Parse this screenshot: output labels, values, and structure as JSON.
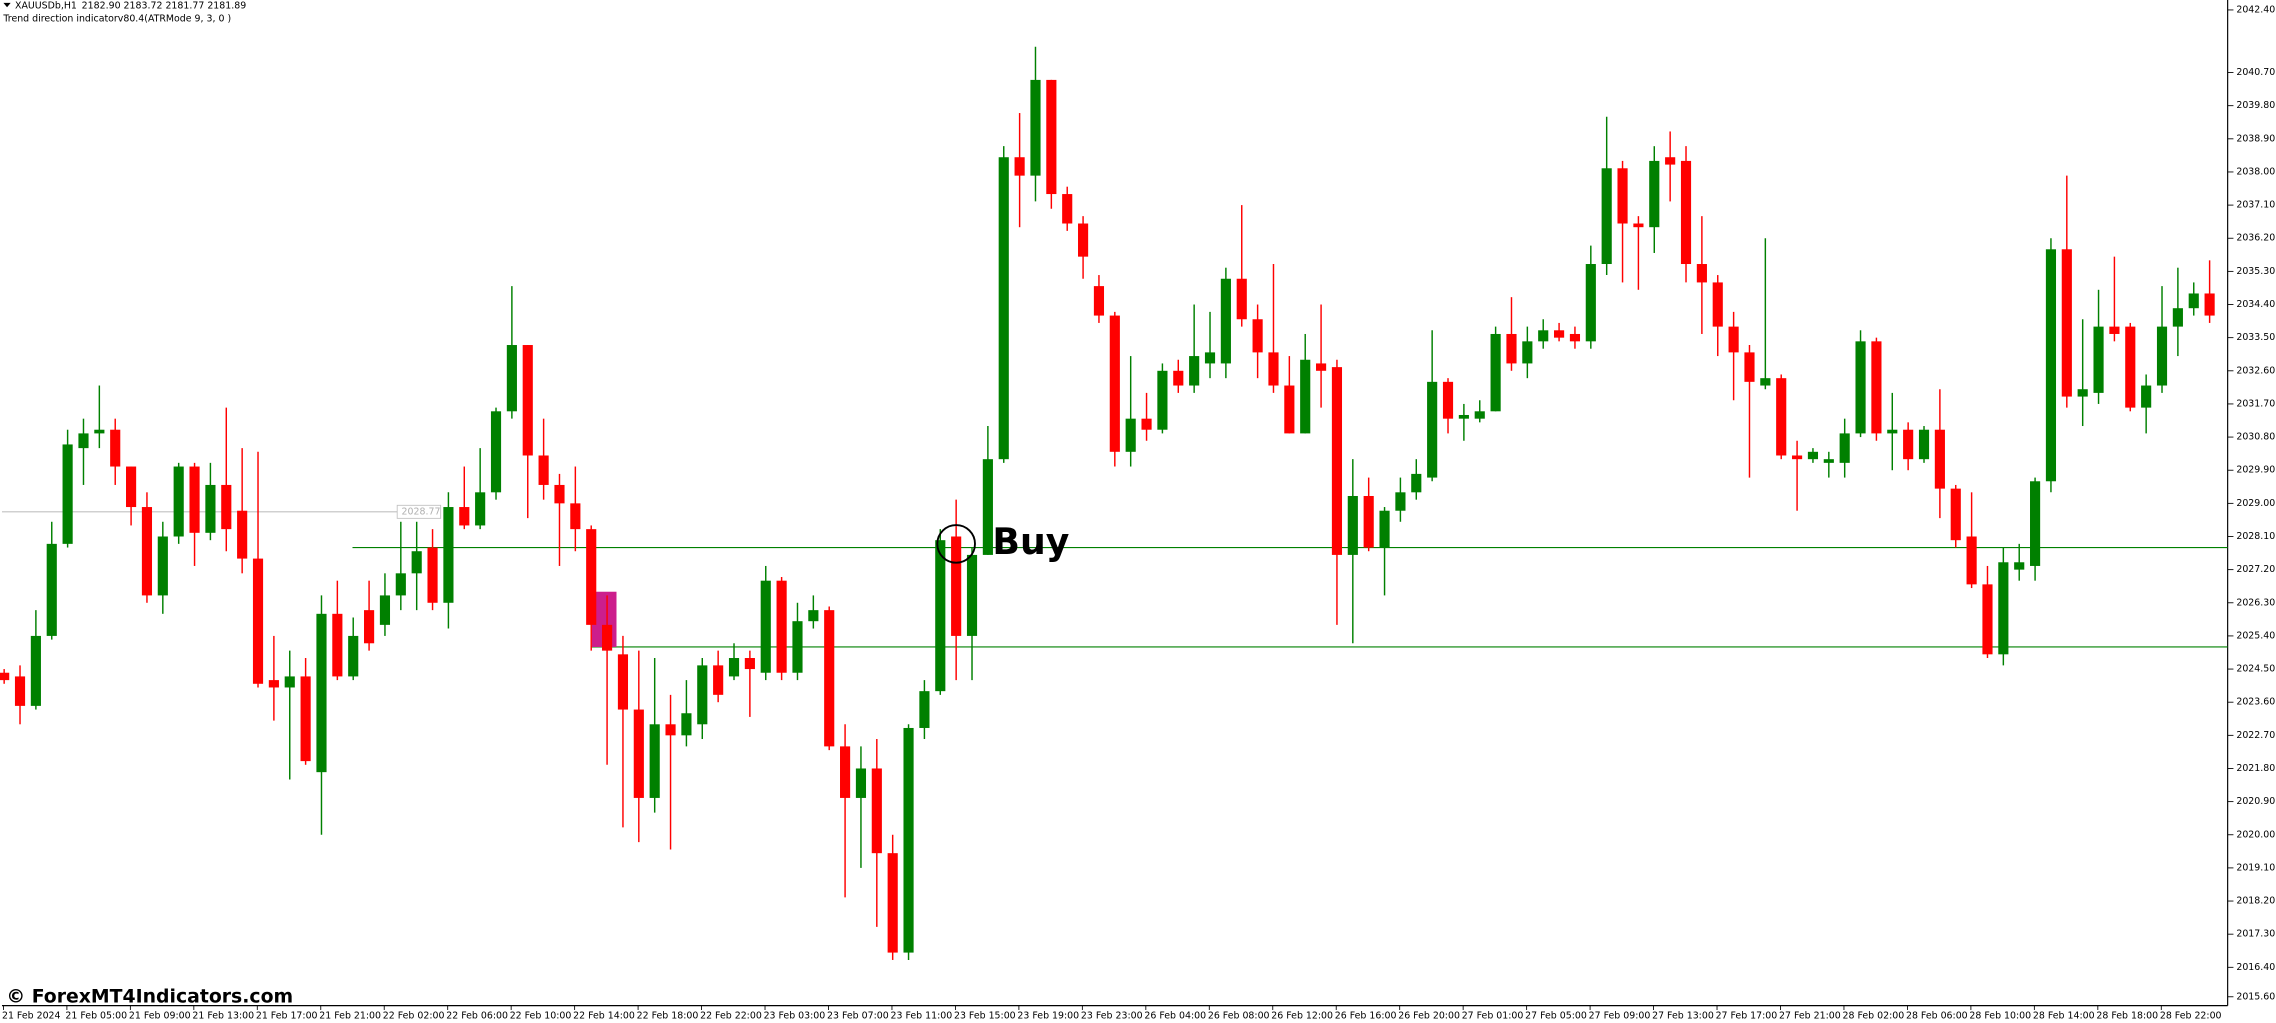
{
  "chart_data": {
    "type": "candlestick",
    "symbol": "XAUUSDb,H1",
    "quote": "2182.90 2183.72 2181.77 2181.89",
    "indicator": "Trend direction indicatorv80.4(ATRMode 9, 3, 0 )",
    "watermark": "© ForexMT4Indicators.com",
    "up_color": "#008000",
    "down_color": "#ff0000",
    "categories": [
      "21 Feb 2024",
      null,
      null,
      null,
      "21 Feb 05:00",
      null,
      null,
      null,
      "21 Feb 09:00",
      null,
      null,
      null,
      "21 Feb 13:00",
      null,
      null,
      null,
      "21 Feb 17:00",
      null,
      null,
      null,
      "21 Feb 21:00",
      null,
      null,
      null,
      "22 Feb 02:00",
      null,
      null,
      null,
      "22 Feb 06:00",
      null,
      null,
      null,
      "22 Feb 10:00",
      null,
      null,
      null,
      "22 Feb 14:00",
      null,
      null,
      null,
      "22 Feb 18:00",
      null,
      null,
      null,
      "22 Feb 22:00",
      null,
      null,
      null,
      "23 Feb 03:00",
      null,
      null,
      null,
      "23 Feb 07:00",
      null,
      null,
      null,
      "23 Feb 11:00",
      null,
      null,
      null,
      "23 Feb 15:00",
      null,
      null,
      null,
      "23 Feb 19:00",
      null,
      null,
      null,
      "23 Feb 23:00",
      null,
      null,
      null,
      "26 Feb 04:00",
      null,
      null,
      null,
      "26 Feb 08:00",
      null,
      null,
      null,
      "26 Feb 12:00",
      null,
      null,
      null,
      "26 Feb 16:00",
      null,
      null,
      null,
      "26 Feb 20:00",
      null,
      null,
      null,
      "27 Feb 01:00",
      null,
      null,
      null,
      "27 Feb 05:00",
      null,
      null,
      null,
      "27 Feb 09:00",
      null,
      null,
      null,
      "27 Feb 13:00",
      null,
      null,
      null,
      "27 Feb 17:00",
      null,
      null,
      null,
      "27 Feb 21:00",
      null,
      null,
      null,
      "28 Feb 02:00",
      null,
      null,
      null,
      "28 Feb 06:00",
      null,
      null,
      null,
      "28 Feb 10:00",
      null,
      null,
      null,
      "28 Feb 14:00",
      null,
      null,
      null,
      "28 Feb 18:00",
      null,
      null,
      null,
      "28 Feb 22:00",
      null,
      null,
      null
    ],
    "ohlc": [
      [
        2024.4,
        2024.5,
        2024.1,
        2024.2
      ],
      [
        2024.3,
        2024.6,
        2023.0,
        2023.5
      ],
      [
        2023.5,
        2026.1,
        2023.4,
        2025.4
      ],
      [
        2025.4,
        2028.5,
        2025.3,
        2027.9
      ],
      [
        2027.9,
        2031.0,
        2027.8,
        2030.6
      ],
      [
        2030.5,
        2031.3,
        2029.5,
        2030.9
      ],
      [
        2030.9,
        2032.2,
        2030.5,
        2031.0
      ],
      [
        2031.0,
        2031.3,
        2029.5,
        2030.0
      ],
      [
        2030.0,
        2030.0,
        2028.4,
        2028.9
      ],
      [
        2028.9,
        2029.3,
        2026.3,
        2026.5
      ],
      [
        2026.5,
        2028.5,
        2026.0,
        2028.1
      ],
      [
        2028.1,
        2030.1,
        2027.9,
        2030.0
      ],
      [
        2030.0,
        2030.1,
        2027.3,
        2028.2
      ],
      [
        2028.2,
        2030.1,
        2028.0,
        2029.5
      ],
      [
        2029.5,
        2031.6,
        2027.7,
        2028.3
      ],
      [
        2028.8,
        2030.5,
        2027.1,
        2027.5
      ],
      [
        2027.5,
        2030.4,
        2024.0,
        2024.1
      ],
      [
        2024.2,
        2025.4,
        2023.1,
        2024.0
      ],
      [
        2024.0,
        2025.0,
        2021.5,
        2024.3
      ],
      [
        2024.3,
        2024.8,
        2021.9,
        2022.0
      ],
      [
        2021.7,
        2026.5,
        2020.0,
        2026.0
      ],
      [
        2026.0,
        2026.9,
        2024.2,
        2024.3
      ],
      [
        2024.3,
        2025.9,
        2024.2,
        2025.4
      ],
      [
        2026.1,
        2026.9,
        2025.0,
        2025.2
      ],
      [
        2025.7,
        2027.1,
        2025.4,
        2026.5
      ],
      [
        2026.5,
        2028.5,
        2026.1,
        2027.1
      ],
      [
        2027.1,
        2028.5,
        2026.1,
        2027.7
      ],
      [
        2027.8,
        2028.3,
        2026.1,
        2026.3
      ],
      [
        2026.3,
        2029.3,
        2025.6,
        2028.9
      ],
      [
        2028.9,
        2030.0,
        2028.3,
        2028.4
      ],
      [
        2028.4,
        2030.5,
        2028.3,
        2029.3
      ],
      [
        2029.3,
        2031.6,
        2029.1,
        2031.5
      ],
      [
        2031.5,
        2034.9,
        2031.3,
        2033.3
      ],
      [
        2033.3,
        2033.3,
        2028.6,
        2030.3
      ],
      [
        2030.3,
        2031.3,
        2029.1,
        2029.5
      ],
      [
        2029.5,
        2029.8,
        2027.3,
        2029.0
      ],
      [
        2029.0,
        2030.0,
        2027.7,
        2028.3
      ],
      [
        2028.3,
        2028.4,
        2025.0,
        2025.7
      ],
      [
        2025.7,
        2026.5,
        2021.9,
        2025.0
      ],
      [
        2024.9,
        2025.4,
        2020.2,
        2023.4
      ],
      [
        2023.4,
        2025.0,
        2019.8,
        2021.0
      ],
      [
        2021.0,
        2024.8,
        2020.6,
        2023.0
      ],
      [
        2023.0,
        2023.8,
        2019.6,
        2022.7
      ],
      [
        2022.7,
        2024.2,
        2022.4,
        2023.3
      ],
      [
        2023.0,
        2024.8,
        2022.6,
        2024.6
      ],
      [
        2024.6,
        2025.0,
        2023.6,
        2023.8
      ],
      [
        2024.3,
        2025.2,
        2024.2,
        2024.8
      ],
      [
        2024.8,
        2025.0,
        2023.2,
        2024.5
      ],
      [
        2024.4,
        2027.3,
        2024.2,
        2026.9
      ],
      [
        2026.9,
        2027.0,
        2024.2,
        2024.4
      ],
      [
        2024.4,
        2026.3,
        2024.2,
        2025.8
      ],
      [
        2025.8,
        2026.5,
        2025.6,
        2026.1
      ],
      [
        2026.1,
        2026.2,
        2022.3,
        2022.4
      ],
      [
        2022.4,
        2023.0,
        2018.3,
        2021.0
      ],
      [
        2021.0,
        2022.4,
        2019.1,
        2021.8
      ],
      [
        2021.8,
        2022.6,
        2017.5,
        2019.5
      ],
      [
        2019.5,
        2020.0,
        2016.6,
        2016.8
      ],
      [
        2016.8,
        2023.0,
        2016.6,
        2022.9
      ],
      [
        2022.9,
        2024.2,
        2022.6,
        2023.9
      ],
      [
        2023.9,
        2028.3,
        2023.8,
        2028.0
      ],
      [
        2028.1,
        2029.1,
        2024.2,
        2025.4
      ],
      [
        2025.4,
        2027.8,
        2024.2,
        2027.6
      ],
      [
        2027.6,
        2031.1,
        2027.6,
        2030.2
      ],
      [
        2030.2,
        2038.7,
        2030.1,
        2038.4
      ],
      [
        2038.4,
        2039.6,
        2036.5,
        2037.9
      ],
      [
        2037.9,
        2041.4,
        2037.2,
        2040.5
      ],
      [
        2040.5,
        2040.5,
        2037.0,
        2037.4
      ],
      [
        2037.4,
        2037.6,
        2036.4,
        2036.6
      ],
      [
        2036.6,
        2036.8,
        2035.1,
        2035.7
      ],
      [
        2034.9,
        2035.2,
        2033.9,
        2034.1
      ],
      [
        2034.1,
        2034.2,
        2030.0,
        2030.4
      ],
      [
        2030.4,
        2033.0,
        2030.0,
        2031.3
      ],
      [
        2031.3,
        2032.0,
        2030.7,
        2031.0
      ],
      [
        2031.0,
        2032.8,
        2030.9,
        2032.6
      ],
      [
        2032.6,
        2032.9,
        2032.0,
        2032.2
      ],
      [
        2032.2,
        2034.4,
        2032.0,
        2033.0
      ],
      [
        2032.8,
        2034.2,
        2032.4,
        2033.1
      ],
      [
        2032.8,
        2035.4,
        2032.4,
        2035.1
      ],
      [
        2035.1,
        2037.1,
        2033.8,
        2034.0
      ],
      [
        2034.0,
        2034.4,
        2032.4,
        2033.1
      ],
      [
        2033.1,
        2035.5,
        2032.0,
        2032.2
      ],
      [
        2032.2,
        2033.0,
        2030.9,
        2030.9
      ],
      [
        2030.9,
        2033.6,
        2030.9,
        2032.9
      ],
      [
        2032.8,
        2034.4,
        2031.6,
        2032.6
      ],
      [
        2032.7,
        2032.9,
        2025.7,
        2027.6
      ],
      [
        2027.6,
        2030.2,
        2025.2,
        2029.2
      ],
      [
        2029.2,
        2029.7,
        2027.7,
        2027.8
      ],
      [
        2027.8,
        2028.9,
        2026.5,
        2028.8
      ],
      [
        2028.8,
        2029.7,
        2028.5,
        2029.3
      ],
      [
        2029.3,
        2030.2,
        2029.1,
        2029.8
      ],
      [
        2029.7,
        2033.7,
        2029.6,
        2032.3
      ],
      [
        2032.3,
        2032.4,
        2030.9,
        2031.3
      ],
      [
        2031.3,
        2031.7,
        2030.7,
        2031.4
      ],
      [
        2031.3,
        2031.8,
        2031.2,
        2031.5
      ],
      [
        2031.5,
        2033.8,
        2031.5,
        2033.6
      ],
      [
        2033.6,
        2034.6,
        2032.6,
        2032.8
      ],
      [
        2032.8,
        2033.8,
        2032.4,
        2033.4
      ],
      [
        2033.4,
        2034.0,
        2033.2,
        2033.7
      ],
      [
        2033.7,
        2033.9,
        2033.4,
        2033.5
      ],
      [
        2033.6,
        2033.8,
        2033.2,
        2033.4
      ],
      [
        2033.4,
        2036.0,
        2033.2,
        2035.5
      ],
      [
        2035.5,
        2039.5,
        2035.2,
        2038.1
      ],
      [
        2038.1,
        2038.3,
        2035.0,
        2036.6
      ],
      [
        2036.6,
        2036.8,
        2034.8,
        2036.5
      ],
      [
        2036.5,
        2038.7,
        2035.8,
        2038.3
      ],
      [
        2038.4,
        2039.1,
        2037.2,
        2038.2
      ],
      [
        2038.3,
        2038.7,
        2035.0,
        2035.5
      ],
      [
        2035.5,
        2036.8,
        2033.6,
        2035.0
      ],
      [
        2035.0,
        2035.2,
        2033.0,
        2033.8
      ],
      [
        2033.8,
        2034.2,
        2031.8,
        2033.1
      ],
      [
        2033.1,
        2033.3,
        2029.7,
        2032.3
      ],
      [
        2032.2,
        2036.2,
        2032.1,
        2032.4
      ],
      [
        2032.4,
        2032.5,
        2030.2,
        2030.3
      ],
      [
        2030.3,
        2030.7,
        2028.8,
        2030.2
      ],
      [
        2030.2,
        2030.5,
        2030.1,
        2030.4
      ],
      [
        2030.1,
        2030.4,
        2029.7,
        2030.2
      ],
      [
        2030.1,
        2031.3,
        2029.7,
        2030.9
      ],
      [
        2030.9,
        2033.7,
        2030.8,
        2033.4
      ],
      [
        2033.4,
        2033.5,
        2030.7,
        2030.9
      ],
      [
        2030.9,
        2032.0,
        2029.9,
        2031.0
      ],
      [
        2031.0,
        2031.2,
        2029.9,
        2030.2
      ],
      [
        2030.2,
        2031.1,
        2030.1,
        2031.0
      ],
      [
        2031.0,
        2032.1,
        2028.6,
        2029.4
      ],
      [
        2029.4,
        2029.5,
        2027.8,
        2028.0
      ],
      [
        2028.1,
        2029.3,
        2026.7,
        2026.8
      ],
      [
        2026.8,
        2027.3,
        2024.8,
        2024.9
      ],
      [
        2024.9,
        2027.8,
        2024.6,
        2027.4
      ],
      [
        2027.2,
        2027.9,
        2026.9,
        2027.4
      ],
      [
        2027.3,
        2029.7,
        2026.9,
        2029.6
      ],
      [
        2029.6,
        2036.2,
        2029.3,
        2035.9
      ],
      [
        2035.9,
        2037.9,
        2031.6,
        2031.9
      ],
      [
        2031.9,
        2034.0,
        2031.1,
        2032.1
      ],
      [
        2032.0,
        2034.8,
        2031.7,
        2033.8
      ],
      [
        2033.8,
        2035.7,
        2033.4,
        2033.6
      ],
      [
        2033.8,
        2033.9,
        2031.5,
        2031.6
      ],
      [
        2031.6,
        2032.5,
        2030.9,
        2032.2
      ],
      [
        2032.2,
        2034.9,
        2032.0,
        2033.8
      ],
      [
        2033.8,
        2035.4,
        2033.0,
        2034.3
      ],
      [
        2034.3,
        2035.0,
        2034.1,
        2034.7
      ],
      [
        2034.7,
        2035.6,
        2033.9,
        2034.1
      ]
    ],
    "ylim": [
      2015.36,
      2042.67
    ],
    "yticks": [
      {
        "value": 2042.4,
        "label": "2042.40"
      },
      {
        "value": 2040.7,
        "label": "2040.70"
      },
      {
        "value": 2039.8,
        "label": "2039.80"
      },
      {
        "value": 2038.9,
        "label": "2038.90"
      },
      {
        "value": 2038.0,
        "label": "2038.00"
      },
      {
        "value": 2037.1,
        "label": "2037.10"
      },
      {
        "value": 2036.2,
        "label": "2036.20"
      },
      {
        "value": 2035.3,
        "label": "2035.30"
      },
      {
        "value": 2034.4,
        "label": "2034.40"
      },
      {
        "value": 2033.5,
        "label": "2033.50"
      },
      {
        "value": 2032.6,
        "label": "2032.60"
      },
      {
        "value": 2031.7,
        "label": "2031.70"
      },
      {
        "value": 2030.8,
        "label": "2030.80"
      },
      {
        "value": 2029.9,
        "label": "2029.90"
      },
      {
        "value": 2029.0,
        "label": "2029.00"
      },
      {
        "value": 2028.1,
        "label": "2028.10"
      },
      {
        "value": 2027.2,
        "label": "2027.20"
      },
      {
        "value": 2026.3,
        "label": "2026.30"
      },
      {
        "value": 2025.4,
        "label": "2025.40"
      },
      {
        "value": 2024.5,
        "label": "2024.50"
      },
      {
        "value": 2023.6,
        "label": "2023.60"
      },
      {
        "value": 2022.7,
        "label": "2022.70"
      },
      {
        "value": 2021.8,
        "label": "2021.80"
      },
      {
        "value": 2020.9,
        "label": "2020.90"
      },
      {
        "value": 2020.0,
        "label": "2020.00"
      },
      {
        "value": 2019.1,
        "label": "2019.10"
      },
      {
        "value": 2018.2,
        "label": "2018.20"
      },
      {
        "value": 2017.3,
        "label": "2017.30"
      },
      {
        "value": 2016.4,
        "label": "2016.40"
      },
      {
        "value": 2015.6,
        "label": "2015.60"
      }
    ],
    "hlines": [
      {
        "value": 2027.8,
        "from": 22,
        "color": "#008000"
      },
      {
        "value": 2025.1,
        "from": 37,
        "color": "#008000"
      },
      {
        "value": 2028.77,
        "label": "2028.77",
        "to": 25,
        "color": "#c0c0c0"
      }
    ],
    "zone": {
      "from": 37,
      "to": 38,
      "high": 2026.6,
      "low": 2025.1,
      "color": "#cc1e8c"
    },
    "signal": {
      "text": "Buy",
      "index": 60,
      "value": 2027.9
    }
  }
}
